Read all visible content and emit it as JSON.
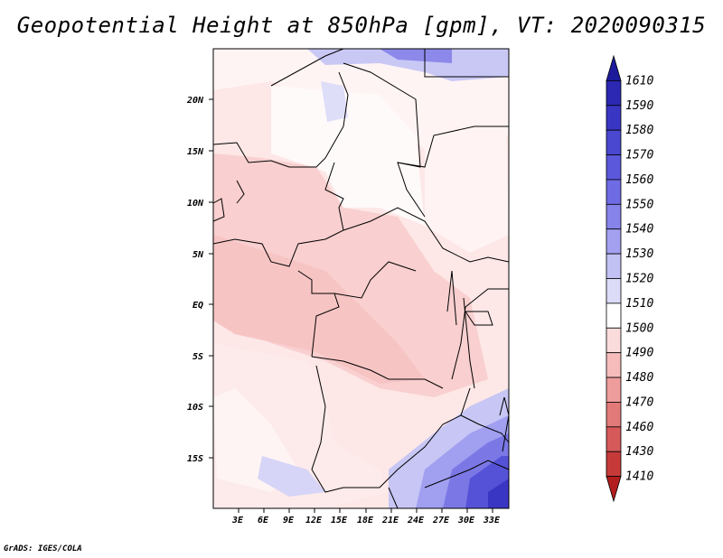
{
  "title": "Geopotential Height at 850hPa [gpm], VT: 2020090315",
  "credit": "GrADS: IGES/COLA",
  "map": {
    "variable": "Geopotential Height",
    "level": "850hPa",
    "units": "gpm",
    "valid_time": "2020090315",
    "lat_ticks": [
      "20N",
      "15N",
      "10N",
      "5N",
      "EQ",
      "5S",
      "10S",
      "15S"
    ],
    "lon_ticks": [
      "3E",
      "6E",
      "9E",
      "12E",
      "15E",
      "18E",
      "21E",
      "24E",
      "27E",
      "30E",
      "33E"
    ]
  },
  "colorbar": {
    "labels": [
      "1610",
      "1590",
      "1580",
      "1570",
      "1560",
      "1550",
      "1540",
      "1530",
      "1520",
      "1510",
      "1500",
      "1490",
      "1480",
      "1470",
      "1460",
      "1430",
      "1410"
    ],
    "colors": [
      "#1d1a9c",
      "#2c28b4",
      "#3a36c4",
      "#4a47d0",
      "#5b58dc",
      "#6e6be4",
      "#8683ea",
      "#a3a1ef",
      "#c2c1f4",
      "#dcdcf8",
      "#ffffff",
      "#fbdcdc",
      "#f6bcbc",
      "#ee9c9c",
      "#e27a7a",
      "#d65a5a",
      "#c73a3a",
      "#b21e1e"
    ]
  }
}
